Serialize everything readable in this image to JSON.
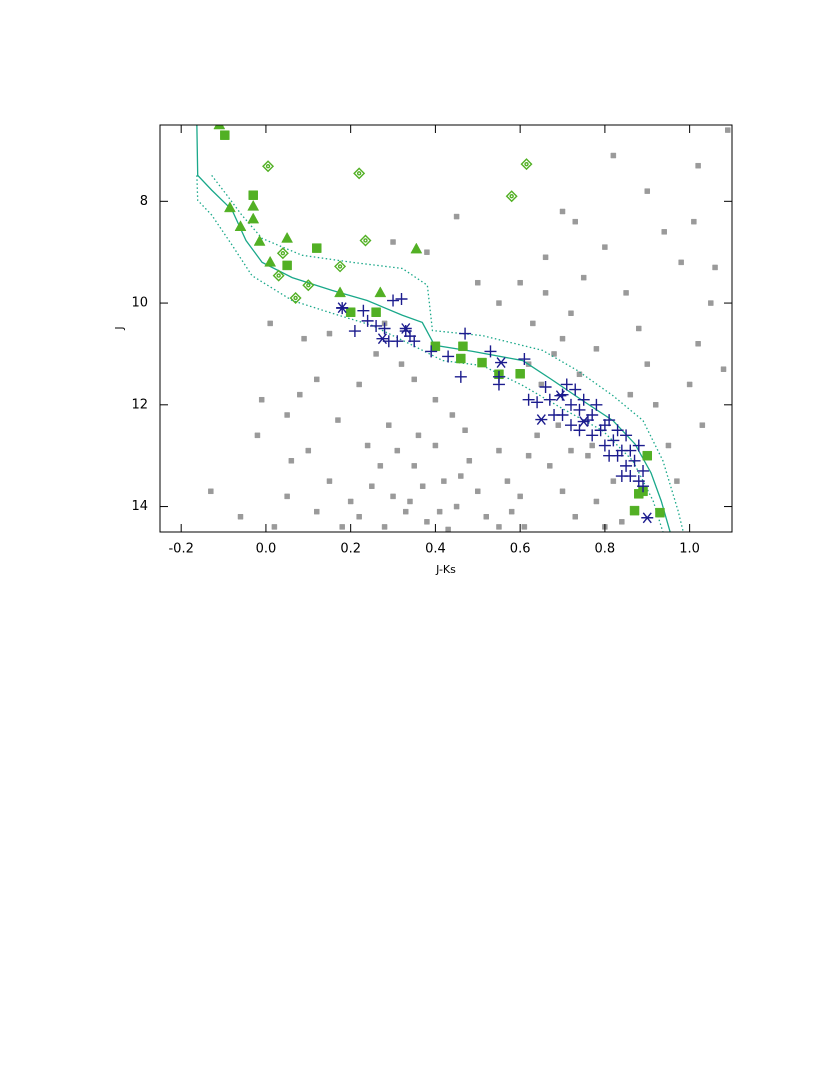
{
  "chart_data": {
    "type": "scatter",
    "xlabel": "J-Ks",
    "ylabel": "J",
    "xlim": [
      -0.25,
      1.1
    ],
    "ylim": [
      6.5,
      14.5
    ],
    "y_inverted": true,
    "xticks": [
      -0.2,
      {
        "value": 0,
        "label": "0.0"
      },
      0.2,
      0.4,
      0.6,
      0.8,
      {
        "value": 1,
        "label": "1.0"
      }
    ],
    "yticks": [
      8,
      10,
      12,
      14
    ],
    "series": [
      {
        "mode": "markers",
        "marker": "dot",
        "color": "#9a9a9a",
        "x": [
          0.3,
          0.35,
          0.4,
          0.42,
          0.45,
          0.38,
          0.33,
          0.28,
          0.25,
          0.22,
          0.48,
          0.5,
          0.52,
          0.47,
          0.44,
          0.36,
          0.31,
          0.27,
          0.2,
          0.18,
          0.4,
          0.35,
          0.32,
          0.55,
          0.57,
          0.58,
          0.61,
          0.55,
          0.43,
          0.37,
          0.46,
          0.41,
          0.34,
          0.29,
          0.24,
          0.15,
          0.12,
          0.1,
          0.05,
          0.08,
          0.62,
          0.65,
          0.68,
          0.7,
          0.72,
          0.66,
          0.63,
          0.75,
          0.78,
          0.74,
          0.64,
          0.67,
          0.7,
          0.73,
          0.78,
          0.8,
          0.76,
          0.69,
          0.62,
          0.6,
          0.84,
          0.82,
          0.72,
          0.77,
          0.86,
          0.88,
          0.9,
          0.92,
          0.95,
          0.97,
          1.0,
          1.02,
          1.05,
          1.08,
          1.03,
          0.98,
          0.94,
          0.85,
          0.8,
          0.73,
          0.7,
          0.66,
          0.6,
          0.55,
          0.5,
          0.82,
          0.9,
          1.01,
          1.06,
          1.09,
          1.02,
          0.45,
          0.38,
          0.3,
          0.28,
          0.15,
          0.12,
          0.05,
          -0.02,
          -0.01,
          -0.13,
          -0.06,
          0.02,
          0.06,
          0.17,
          0.22,
          0.26,
          0.09,
          0.01
        ],
        "y": [
          13.8,
          13.2,
          12.8,
          13.5,
          14.0,
          14.3,
          14.1,
          14.4,
          13.6,
          14.2,
          13.1,
          13.7,
          14.2,
          12.5,
          12.2,
          12.6,
          12.9,
          13.2,
          13.9,
          14.4,
          11.9,
          11.5,
          11.2,
          12.9,
          13.5,
          14.1,
          14.4,
          14.4,
          14.45,
          13.6,
          13.4,
          14.1,
          13.9,
          12.4,
          12.8,
          13.5,
          14.1,
          12.9,
          13.8,
          11.8,
          11.2,
          11.6,
          11.0,
          10.7,
          10.2,
          9.8,
          10.4,
          9.5,
          10.9,
          11.4,
          12.6,
          13.2,
          13.7,
          14.2,
          13.9,
          14.4,
          13.0,
          12.4,
          13.0,
          13.8,
          14.3,
          13.5,
          12.9,
          12.8,
          11.8,
          10.5,
          11.2,
          12.0,
          12.8,
          13.5,
          11.6,
          10.8,
          10.0,
          11.3,
          12.4,
          9.2,
          8.6,
          9.8,
          8.9,
          8.4,
          8.2,
          9.1,
          9.6,
          10.0,
          9.6,
          7.1,
          7.8,
          8.4,
          9.3,
          6.6,
          7.3,
          8.3,
          9.0,
          8.8,
          10.4,
          10.6,
          11.5,
          12.2,
          12.6,
          11.9,
          13.7,
          14.2,
          14.4,
          13.1,
          12.3,
          11.6,
          11.0,
          10.7,
          10.4
        ]
      },
      {
        "mode": "line",
        "style": "solid",
        "color": "#1aa88a",
        "x": [
          -0.163,
          -0.161,
          -0.128,
          -0.08,
          -0.047,
          -0.009,
          0.062,
          0.156,
          0.239,
          0.322,
          0.369,
          0.398,
          0.488,
          0.606,
          0.672,
          0.748,
          0.819,
          0.871,
          0.909,
          0.933,
          0.954
        ],
        "y": [
          6.5,
          7.49,
          7.78,
          8.17,
          8.77,
          9.2,
          9.5,
          9.75,
          9.95,
          10.24,
          10.38,
          10.83,
          10.95,
          11.13,
          11.49,
          11.92,
          12.31,
          12.77,
          13.34,
          13.89,
          14.5
        ]
      },
      {
        "mode": "line",
        "style": "dotted",
        "color": "#1aa88a",
        "x": [
          -0.128,
          -0.092,
          -0.057,
          -0.009,
          0.085,
          0.204,
          0.322,
          0.381,
          0.393,
          0.511,
          0.653,
          0.736,
          0.819,
          0.89,
          0.937,
          0.973,
          0.985
        ],
        "y": [
          7.49,
          7.88,
          8.27,
          8.73,
          9.06,
          9.2,
          9.32,
          9.65,
          10.54,
          10.64,
          10.93,
          11.33,
          11.82,
          12.31,
          13.1,
          14.09,
          14.5
        ]
      },
      {
        "mode": "line",
        "style": "dotted",
        "color": "#1aa88a",
        "x": [
          -0.163,
          -0.161,
          -0.128,
          -0.08,
          -0.033,
          0.062,
          0.156,
          0.251,
          0.346,
          0.417,
          0.511,
          0.606,
          0.701,
          0.795,
          0.866,
          0.914,
          0.937
        ],
        "y": [
          7.49,
          7.98,
          8.27,
          8.86,
          9.46,
          9.95,
          10.2,
          10.44,
          10.83,
          11.13,
          11.23,
          11.62,
          12.08,
          12.51,
          13.1,
          13.89,
          14.5
        ]
      },
      {
        "mode": "markers",
        "marker": "square",
        "color": "#52b024",
        "x": [
          -0.097,
          -0.03,
          0.12,
          0.05,
          0.2,
          0.26,
          0.4,
          0.465,
          0.46,
          0.51,
          0.55,
          0.6,
          0.9,
          0.89,
          0.88,
          0.87,
          0.93
        ],
        "y": [
          6.7,
          7.88,
          8.92,
          9.26,
          10.18,
          10.18,
          10.85,
          10.85,
          11.09,
          11.17,
          11.4,
          11.39,
          13.0,
          13.7,
          13.75,
          14.08,
          14.12
        ]
      },
      {
        "mode": "markers",
        "marker": "triangle",
        "color": "#52b024",
        "x": [
          -0.11,
          -0.085,
          -0.03,
          -0.03,
          -0.06,
          -0.015,
          0.01,
          0.05,
          0.175,
          0.27,
          0.355
        ],
        "y": [
          6.5,
          8.13,
          8.1,
          8.35,
          8.5,
          8.79,
          9.2,
          8.73,
          9.8,
          9.8,
          8.94
        ]
      },
      {
        "mode": "markers",
        "marker": "diamond",
        "color": "#52b024",
        "x": [
          0.005,
          0.22,
          0.615,
          0.58,
          0.235,
          0.175,
          0.04,
          0.03,
          0.1,
          0.07
        ],
        "y": [
          7.31,
          7.45,
          7.27,
          7.9,
          8.77,
          9.28,
          9.02,
          9.46,
          9.65,
          9.9
        ]
      },
      {
        "mode": "markers",
        "marker": "plus",
        "color": "#1c1c8e",
        "x": [
          0.18,
          0.21,
          0.23,
          0.24,
          0.26,
          0.28,
          0.29,
          0.31,
          0.3,
          0.32,
          0.33,
          0.34,
          0.35,
          0.39,
          0.43,
          0.46,
          0.47,
          0.53,
          0.55,
          0.55,
          0.61,
          0.62,
          0.64,
          0.66,
          0.67,
          0.68,
          0.7,
          0.7,
          0.71,
          0.72,
          0.72,
          0.73,
          0.74,
          0.74,
          0.75,
          0.76,
          0.77,
          0.77,
          0.78,
          0.79,
          0.8,
          0.8,
          0.81,
          0.82,
          0.83,
          0.83,
          0.84,
          0.85,
          0.85,
          0.86,
          0.86,
          0.87,
          0.88,
          0.88,
          0.89,
          0.89,
          0.84,
          0.81
        ],
        "y": [
          10.1,
          10.55,
          10.15,
          10.35,
          10.45,
          10.5,
          10.75,
          10.75,
          9.95,
          9.92,
          10.55,
          10.65,
          10.75,
          10.95,
          11.05,
          11.45,
          10.6,
          10.95,
          11.45,
          11.6,
          11.1,
          11.9,
          11.95,
          11.65,
          11.9,
          12.2,
          11.8,
          12.2,
          11.6,
          12.0,
          12.4,
          11.7,
          12.1,
          12.5,
          11.9,
          12.3,
          12.2,
          12.6,
          12.0,
          12.5,
          12.4,
          12.8,
          12.3,
          12.7,
          13.0,
          12.5,
          12.9,
          12.6,
          13.2,
          12.9,
          13.4,
          13.1,
          12.8,
          13.5,
          13.3,
          13.6,
          13.4,
          13.0
        ]
      },
      {
        "mode": "markers",
        "marker": "asterisk",
        "color": "#1c1c8e",
        "x": [
          0.18,
          0.275,
          0.33,
          0.555,
          0.65,
          0.9,
          0.695,
          0.75
        ],
        "y": [
          10.09,
          10.7,
          10.5,
          11.17,
          12.29,
          14.22,
          11.82,
          12.33
        ]
      }
    ]
  }
}
